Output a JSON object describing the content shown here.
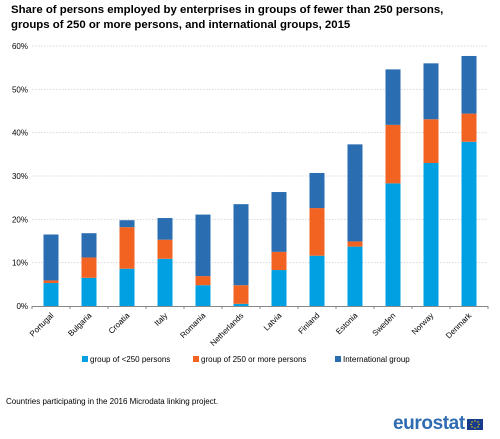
{
  "title_lines": [
    "Share of persons employed by enterprises in groups of fewer than 250 persons,",
    "groups of 250 or more persons, and international groups, 2015"
  ],
  "footnote": "Countries participating in the 2016 Microdata linking project.",
  "logo_text": "eurostat",
  "colors": {
    "small": "#00a0e3",
    "large": "#f26322",
    "international": "#2a6db0",
    "grid": "#d9d9d9",
    "axis": "#888888"
  },
  "chart_data": {
    "type": "bar",
    "stacked": true,
    "categories": [
      "Portugal",
      "Bulgaria",
      "Croatia",
      "Italy",
      "Romania",
      "Netherlands",
      "Latvia",
      "Finland",
      "Estonia",
      "Sweden",
      "Norway",
      "Denmark"
    ],
    "series": [
      {
        "name": "group of <250 persons",
        "color": "#00a0e3",
        "values": [
          5.3,
          6.5,
          8.6,
          10.9,
          4.8,
          0.5,
          8.3,
          11.6,
          13.7,
          28.3,
          33.0,
          37.9
        ]
      },
      {
        "name": "group of 250 or more persons",
        "color": "#f26322",
        "values": [
          0.6,
          4.7,
          9.6,
          4.4,
          2.1,
          4.3,
          4.2,
          11.0,
          1.2,
          13.5,
          10.1,
          6.5
        ]
      },
      {
        "name": "International  group",
        "color": "#2a6db0",
        "values": [
          10.6,
          5.6,
          1.6,
          5.0,
          14.2,
          18.7,
          13.8,
          8.1,
          22.4,
          12.8,
          12.9,
          13.3
        ]
      }
    ],
    "ylim": [
      0,
      60
    ],
    "yticks": [
      0,
      10,
      20,
      30,
      40,
      50,
      60
    ],
    "ytick_labels": [
      "0%",
      "10%",
      "20%",
      "30%",
      "40%",
      "50%",
      "60%"
    ],
    "grid": true,
    "legend_position": "bottom"
  }
}
